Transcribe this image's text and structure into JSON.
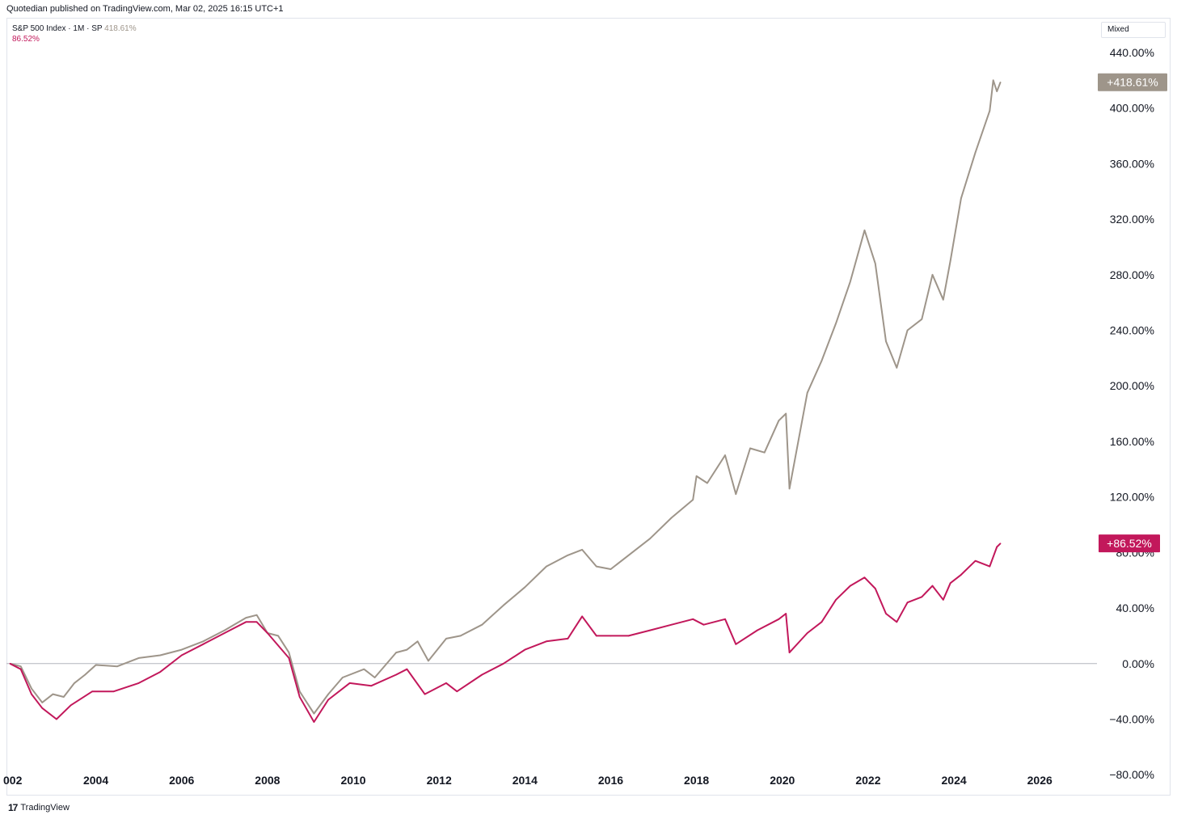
{
  "header": {
    "published": "Quotedian published on TradingView.com, Mar 02, 2025 16:15 UTC+1"
  },
  "legend": {
    "symbol": "S&P 500 Index · 1M · SP",
    "value1": "418.61%",
    "value2": "86.52%"
  },
  "controls": {
    "scale_mode": "Mixed"
  },
  "footer": {
    "brand": "TradingView",
    "logo": "17"
  },
  "colors": {
    "series1": "#9e958a",
    "series2": "#c2185b",
    "zero_line": "#b2b5be"
  },
  "chart_data": {
    "type": "line",
    "title": "S&P 500 Index · 1M · SP",
    "xlabel": "",
    "ylabel": "",
    "x_tick_labels": [
      "002",
      "2004",
      "2006",
      "2008",
      "2010",
      "2012",
      "2014",
      "2016",
      "2018",
      "2020",
      "2022",
      "2024",
      "2026"
    ],
    "y_tick_labels": [
      "440.00%",
      "400.00%",
      "360.00%",
      "320.00%",
      "280.00%",
      "240.00%",
      "200.00%",
      "160.00%",
      "120.00%",
      "80.00%",
      "40.00%",
      "0.00%",
      "−40.00%",
      "−80.00%"
    ],
    "y_ticks": [
      440,
      400,
      360,
      320,
      280,
      240,
      200,
      160,
      120,
      80,
      40,
      0,
      -40,
      -80
    ],
    "xlim": [
      "2001-12",
      "2027-05"
    ],
    "ylim": [
      -95,
      465
    ],
    "grid": false,
    "series": [
      {
        "last_label": "+418.61%",
        "points": [
          [
            "2002-01",
            0
          ],
          [
            "2002-04",
            -2
          ],
          [
            "2002-07",
            -18
          ],
          [
            "2002-10",
            -28
          ],
          [
            "2003-01",
            -22
          ],
          [
            "2003-04",
            -24
          ],
          [
            "2003-07",
            -14
          ],
          [
            "2003-10",
            -8
          ],
          [
            "2004-01",
            -1
          ],
          [
            "2004-07",
            -2
          ],
          [
            "2005-01",
            4
          ],
          [
            "2005-07",
            6
          ],
          [
            "2006-01",
            10
          ],
          [
            "2006-07",
            16
          ],
          [
            "2007-01",
            24
          ],
          [
            "2007-07",
            33
          ],
          [
            "2007-10",
            35
          ],
          [
            "2008-01",
            22
          ],
          [
            "2008-04",
            20
          ],
          [
            "2008-07",
            8
          ],
          [
            "2008-10",
            -20
          ],
          [
            "2009-02",
            -36
          ],
          [
            "2009-06",
            -22
          ],
          [
            "2009-10",
            -10
          ],
          [
            "2010-04",
            -4
          ],
          [
            "2010-07",
            -10
          ],
          [
            "2011-01",
            8
          ],
          [
            "2011-04",
            10
          ],
          [
            "2011-07",
            16
          ],
          [
            "2011-10",
            2
          ],
          [
            "2012-03",
            18
          ],
          [
            "2012-07",
            20
          ],
          [
            "2013-01",
            28
          ],
          [
            "2013-07",
            42
          ],
          [
            "2014-01",
            55
          ],
          [
            "2014-07",
            70
          ],
          [
            "2015-01",
            78
          ],
          [
            "2015-05",
            82
          ],
          [
            "2015-09",
            70
          ],
          [
            "2016-01",
            68
          ],
          [
            "2016-06",
            78
          ],
          [
            "2016-12",
            90
          ],
          [
            "2017-06",
            105
          ],
          [
            "2017-12",
            118
          ],
          [
            "2018-01",
            135
          ],
          [
            "2018-04",
            130
          ],
          [
            "2018-09",
            150
          ],
          [
            "2018-12",
            122
          ],
          [
            "2019-04",
            155
          ],
          [
            "2019-08",
            152
          ],
          [
            "2019-12",
            175
          ],
          [
            "2020-02",
            180
          ],
          [
            "2020-03",
            126
          ],
          [
            "2020-08",
            195
          ],
          [
            "2020-12",
            218
          ],
          [
            "2021-04",
            245
          ],
          [
            "2021-08",
            275
          ],
          [
            "2021-12",
            312
          ],
          [
            "2022-03",
            288
          ],
          [
            "2022-06",
            232
          ],
          [
            "2022-09",
            213
          ],
          [
            "2022-12",
            240
          ],
          [
            "2023-04",
            248
          ],
          [
            "2023-07",
            280
          ],
          [
            "2023-10",
            262
          ],
          [
            "2023-12",
            290
          ],
          [
            "2024-03",
            335
          ],
          [
            "2024-07",
            368
          ],
          [
            "2024-11",
            398
          ],
          [
            "2024-12",
            420
          ],
          [
            "2025-01",
            412
          ],
          [
            "2025-02",
            418.61
          ]
        ]
      },
      {
        "last_label": "+86.52%",
        "points": [
          [
            "2002-01",
            0
          ],
          [
            "2002-04",
            -4
          ],
          [
            "2002-07",
            -22
          ],
          [
            "2002-10",
            -32
          ],
          [
            "2003-02",
            -40
          ],
          [
            "2003-06",
            -30
          ],
          [
            "2003-12",
            -20
          ],
          [
            "2004-06",
            -20
          ],
          [
            "2005-01",
            -14
          ],
          [
            "2005-07",
            -6
          ],
          [
            "2006-01",
            6
          ],
          [
            "2006-07",
            14
          ],
          [
            "2007-01",
            22
          ],
          [
            "2007-07",
            30
          ],
          [
            "2007-10",
            30
          ],
          [
            "2008-01",
            22
          ],
          [
            "2008-07",
            4
          ],
          [
            "2008-10",
            -24
          ],
          [
            "2009-02",
            -42
          ],
          [
            "2009-06",
            -26
          ],
          [
            "2009-12",
            -14
          ],
          [
            "2010-06",
            -16
          ],
          [
            "2011-01",
            -8
          ],
          [
            "2011-04",
            -4
          ],
          [
            "2011-09",
            -22
          ],
          [
            "2012-03",
            -14
          ],
          [
            "2012-06",
            -20
          ],
          [
            "2013-01",
            -8
          ],
          [
            "2013-07",
            0
          ],
          [
            "2014-01",
            10
          ],
          [
            "2014-07",
            16
          ],
          [
            "2015-01",
            18
          ],
          [
            "2015-05",
            34
          ],
          [
            "2015-09",
            20
          ],
          [
            "2016-01",
            20
          ],
          [
            "2016-06",
            20
          ],
          [
            "2016-12",
            24
          ],
          [
            "2017-06",
            28
          ],
          [
            "2017-12",
            32
          ],
          [
            "2018-03",
            28
          ],
          [
            "2018-09",
            32
          ],
          [
            "2018-12",
            14
          ],
          [
            "2019-06",
            24
          ],
          [
            "2019-12",
            32
          ],
          [
            "2020-02",
            36
          ],
          [
            "2020-03",
            8
          ],
          [
            "2020-08",
            22
          ],
          [
            "2020-12",
            30
          ],
          [
            "2021-04",
            46
          ],
          [
            "2021-08",
            56
          ],
          [
            "2021-12",
            62
          ],
          [
            "2022-03",
            54
          ],
          [
            "2022-06",
            36
          ],
          [
            "2022-09",
            30
          ],
          [
            "2022-12",
            44
          ],
          [
            "2023-04",
            48
          ],
          [
            "2023-07",
            56
          ],
          [
            "2023-10",
            46
          ],
          [
            "2023-12",
            58
          ],
          [
            "2024-03",
            64
          ],
          [
            "2024-07",
            74
          ],
          [
            "2024-11",
            70
          ],
          [
            "2025-01",
            84
          ],
          [
            "2025-02",
            86.52
          ]
        ]
      }
    ]
  }
}
